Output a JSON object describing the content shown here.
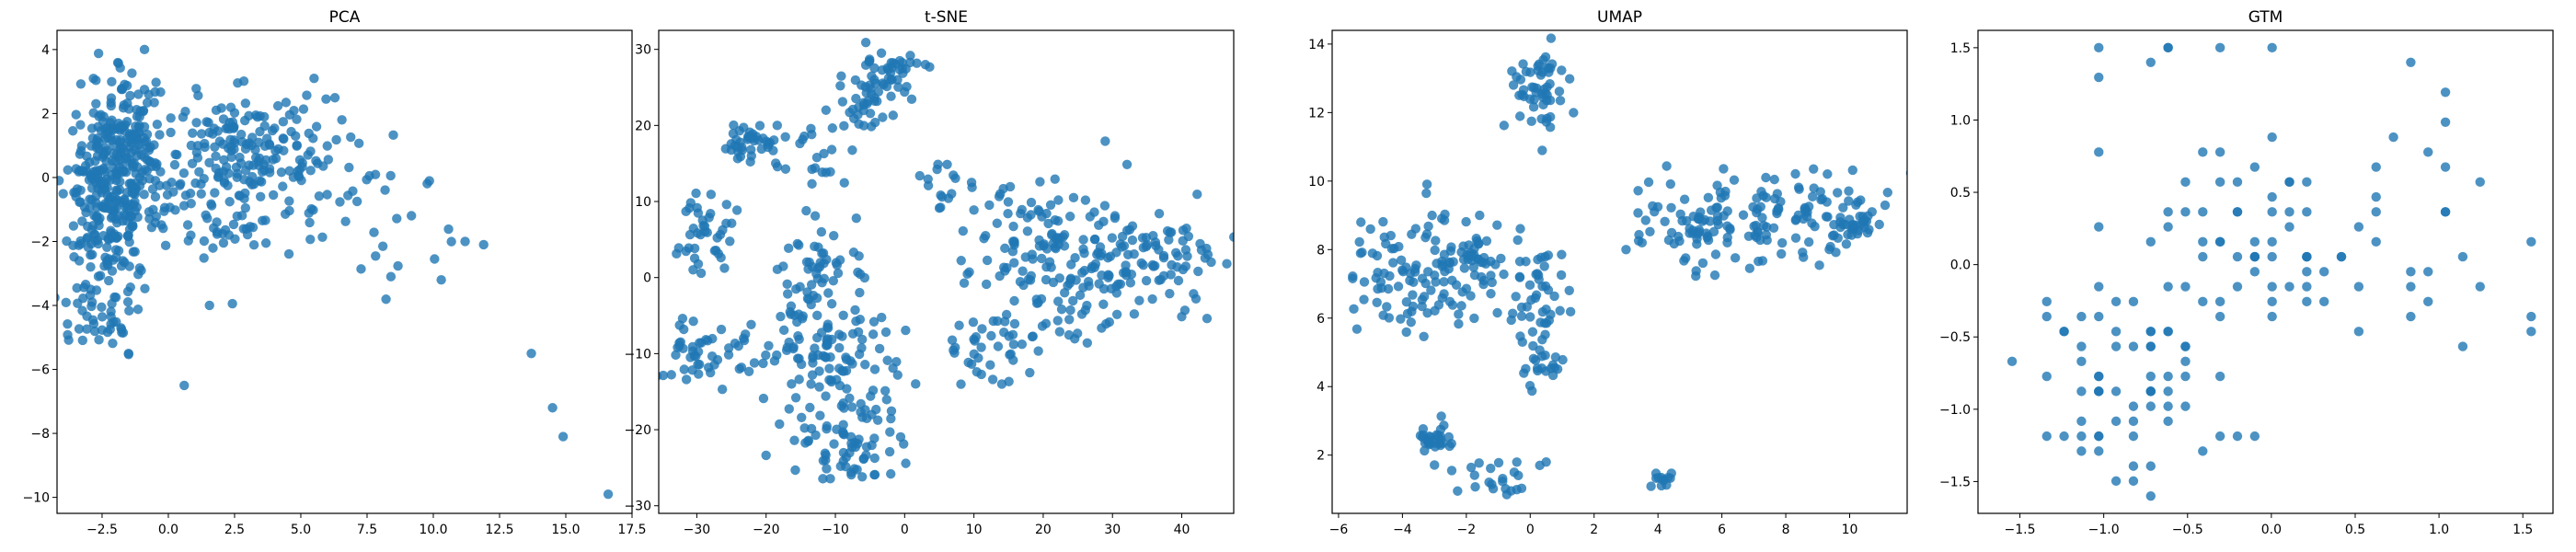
{
  "colors": {
    "point": "#1f77b4"
  },
  "chart_data": [
    {
      "type": "scatter",
      "title": "PCA",
      "xlim": [
        -4.2,
        17.5
      ],
      "ylim": [
        -10.5,
        4.6
      ],
      "xticks": [
        -2.5,
        0.0,
        2.5,
        5.0,
        7.5,
        10.0,
        12.5,
        15.0,
        17.5
      ],
      "yticks": [
        -10,
        -8,
        -6,
        -4,
        -2,
        0,
        2,
        4
      ],
      "xtick_labels": [
        "−2.5",
        "0.0",
        "2.5",
        "5.0",
        "7.5",
        "10.0",
        "12.5",
        "15.0",
        "17.5"
      ],
      "ytick_labels": [
        "−10",
        "−8",
        "−6",
        "−4",
        "−2",
        "0",
        "2",
        "4"
      ],
      "series": [
        {
          "clusters": [
            {
              "cx": -2.2,
              "cy": -0.5,
              "sx": 0.8,
              "sy": 1.6,
              "n": 320
            },
            {
              "cx": -1.2,
              "cy": 1.3,
              "sx": 0.6,
              "sy": 0.8,
              "n": 70
            },
            {
              "cx": 2.8,
              "cy": 1.0,
              "sx": 1.6,
              "sy": 0.9,
              "n": 150
            },
            {
              "cx": 1.5,
              "cy": -1.0,
              "sx": 1.8,
              "sy": 1.0,
              "n": 70
            },
            {
              "cx": 5.5,
              "cy": -0.4,
              "sx": 1.8,
              "sy": 1.2,
              "n": 45
            },
            {
              "cx": -2.4,
              "cy": -4.2,
              "sx": 0.7,
              "sy": 0.6,
              "n": 28
            },
            {
              "cx": 9.5,
              "cy": -1.6,
              "sx": 1.3,
              "sy": 1.1,
              "n": 10
            }
          ],
          "points": [
            [
              -0.9,
              4.0
            ],
            [
              0.6,
              -6.5
            ],
            [
              -1.5,
              -5.5
            ],
            [
              13.7,
              -5.5
            ],
            [
              14.5,
              -7.2
            ],
            [
              14.9,
              -8.1
            ],
            [
              16.6,
              -9.9
            ],
            [
              11.2,
              -2.0
            ],
            [
              11.9,
              -2.1
            ],
            [
              10.3,
              -3.2
            ],
            [
              8.4,
              -3.1
            ],
            [
              5.5,
              3.1
            ]
          ]
        }
      ]
    },
    {
      "type": "scatter",
      "title": "t-SNE",
      "xlim": [
        -35.5,
        47.5
      ],
      "ylim": [
        -31,
        32.5
      ],
      "xticks": [
        -30,
        -20,
        -10,
        0,
        10,
        20,
        30,
        40
      ],
      "yticks": [
        -30,
        -20,
        -10,
        0,
        10,
        20,
        30
      ],
      "xtick_labels": [
        "−30",
        "−20",
        "−10",
        "0",
        "10",
        "20",
        "30",
        "40"
      ],
      "ytick_labels": [
        "−30",
        "−20",
        "−10",
        "0",
        "10",
        "20",
        "30"
      ],
      "series": [
        {
          "clusters": [
            {
              "cx": -2,
              "cy": 27,
              "sx": 3.0,
              "sy": 2.0,
              "n": 45
            },
            {
              "cx": -6,
              "cy": 22,
              "sx": 2.5,
              "sy": 1.5,
              "n": 30
            },
            {
              "cx": -22,
              "cy": 17.5,
              "sx": 2.0,
              "sy": 1.5,
              "n": 40
            },
            {
              "cx": -13,
              "cy": 15.5,
              "sx": 3.0,
              "sy": 2.0,
              "n": 20
            },
            {
              "cx": -28,
              "cy": 6,
              "sx": 2.0,
              "sy": 3.0,
              "n": 40
            },
            {
              "cx": -29,
              "cy": -10,
              "sx": 3.0,
              "sy": 2.5,
              "n": 45
            },
            {
              "cx": -12,
              "cy": 2,
              "sx": 3.0,
              "sy": 3.0,
              "n": 40
            },
            {
              "cx": -12,
              "cy": -10,
              "sx": 5.0,
              "sy": 5.0,
              "n": 120
            },
            {
              "cx": -8,
              "cy": -22,
              "sx": 4.0,
              "sy": 3.0,
              "n": 70
            },
            {
              "cx": 5,
              "cy": 12,
              "sx": 2.0,
              "sy": 2.0,
              "n": 15
            },
            {
              "cx": 13,
              "cy": -9,
              "sx": 4.0,
              "sy": 2.5,
              "n": 40
            },
            {
              "cx": 21,
              "cy": 5,
              "sx": 6.0,
              "sy": 4.0,
              "n": 110
            },
            {
              "cx": 35,
              "cy": 2,
              "sx": 6.0,
              "sy": 3.0,
              "n": 90
            },
            {
              "cx": 25,
              "cy": -3,
              "sx": 5.0,
              "sy": 3.0,
              "n": 40
            }
          ],
          "points": []
        }
      ]
    },
    {
      "type": "scatter",
      "title": "UMAP",
      "xlim": [
        -6.2,
        11.8
      ],
      "ylim": [
        0.3,
        14.4
      ],
      "xticks": [
        -6,
        -4,
        -2,
        0,
        2,
        4,
        6,
        8,
        10
      ],
      "yticks": [
        2,
        4,
        6,
        8,
        10,
        12,
        14
      ],
      "xtick_labels": [
        "−6",
        "−4",
        "−2",
        "0",
        "2",
        "4",
        "6",
        "8",
        "10"
      ],
      "ytick_labels": [
        "2",
        "4",
        "6",
        "8",
        "10",
        "12",
        "14"
      ],
      "series": [
        {
          "clusters": [
            {
              "cx": 0.2,
              "cy": 12.6,
              "sx": 0.4,
              "sy": 0.6,
              "n": 55
            },
            {
              "cx": -3.5,
              "cy": 7.2,
              "sx": 1.1,
              "sy": 0.9,
              "n": 110
            },
            {
              "cx": -1.8,
              "cy": 7.5,
              "sx": 0.5,
              "sy": 1.0,
              "n": 35
            },
            {
              "cx": 0.2,
              "cy": 6.5,
              "sx": 0.5,
              "sy": 1.0,
              "n": 50
            },
            {
              "cx": 0.5,
              "cy": 4.5,
              "sx": 0.3,
              "sy": 0.5,
              "n": 15
            },
            {
              "cx": -3.0,
              "cy": 2.4,
              "sx": 0.3,
              "sy": 0.3,
              "n": 30
            },
            {
              "cx": -1.2,
              "cy": 1.2,
              "sx": 0.6,
              "sy": 0.3,
              "n": 20
            },
            {
              "cx": 4.2,
              "cy": 1.2,
              "sx": 0.2,
              "sy": 0.2,
              "n": 12
            },
            {
              "cx": 5.5,
              "cy": 8.8,
              "sx": 1.3,
              "sy": 0.7,
              "n": 90
            },
            {
              "cx": 8.5,
              "cy": 9.2,
              "sx": 1.3,
              "sy": 0.7,
              "n": 70
            },
            {
              "cx": 10.2,
              "cy": 8.8,
              "sx": 0.6,
              "sy": 0.3,
              "n": 30
            }
          ],
          "points": [
            [
              0.5,
              1.8
            ],
            [
              0.3,
              1.7
            ],
            [
              -0.5,
              1.5
            ],
            [
              3.0,
              8.0
            ],
            [
              3.5,
              8.2
            ],
            [
              -5.3,
              8.8
            ],
            [
              -5.0,
              8.6
            ]
          ]
        }
      ]
    },
    {
      "type": "scatter",
      "title": "GTM",
      "xlim": [
        -1.75,
        1.68
      ],
      "ylim": [
        -1.72,
        1.62
      ],
      "xticks": [
        -1.5,
        -1.0,
        -0.5,
        0.0,
        0.5,
        1.0,
        1.5
      ],
      "yticks": [
        -1.5,
        -1.0,
        -0.5,
        0.0,
        0.5,
        1.0,
        1.5
      ],
      "xtick_labels": [
        "−1.5",
        "−1.0",
        "−0.5",
        "0.0",
        "0.5",
        "1.0",
        "1.5"
      ],
      "ytick_labels": [
        "−1.5",
        "−1.0",
        "−0.5",
        "0.0",
        "0.5",
        "1.0",
        "1.5"
      ],
      "series": [
        {
          "grid": {
            "x_min": -1.65,
            "x_max": 1.55,
            "y_min": -1.6,
            "y_max": 1.5,
            "step": 0.1034
          },
          "clusters": [
            {
              "cx": -0.9,
              "cy": -0.9,
              "sx": 0.3,
              "sy": 0.35,
              "n": 60
            },
            {
              "cx": -0.2,
              "cy": 0.1,
              "sx": 0.4,
              "sy": 0.5,
              "n": 50
            },
            {
              "cx": 0.6,
              "cy": 0.2,
              "sx": 0.5,
              "sy": 0.5,
              "n": 40
            }
          ],
          "points": [
            [
              0.0,
              1.52
            ],
            [
              -0.6,
              1.5
            ],
            [
              -0.65,
              1.53
            ],
            [
              -1.0,
              1.47
            ],
            [
              1.0,
              1.2
            ]
          ]
        }
      ]
    }
  ]
}
